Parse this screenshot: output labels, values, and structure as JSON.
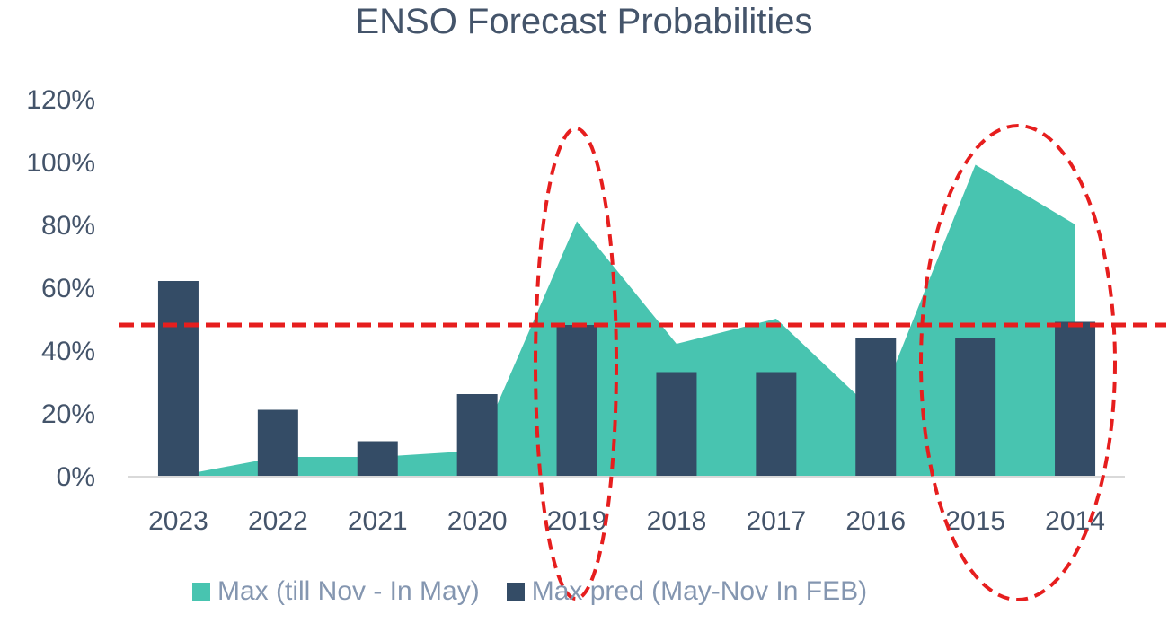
{
  "chart_data": {
    "type": "bar",
    "title": "ENSO Forecast Probabilities",
    "categories": [
      "2023",
      "2022",
      "2021",
      "2020",
      "2019",
      "2018",
      "2017",
      "2016",
      "2015",
      "2014"
    ],
    "series": [
      {
        "name": "Max (till Nov - In May)",
        "type": "area",
        "color": "#48c4b0",
        "values": [
          0,
          6,
          6,
          8,
          81,
          42,
          50,
          20,
          99,
          80
        ]
      },
      {
        "name": "Max pred (May-Nov In FEB)",
        "type": "bar",
        "color": "#344c66",
        "values": [
          62,
          21,
          11,
          26,
          48,
          33,
          33,
          44,
          44,
          49
        ]
      }
    ],
    "yticks": [
      "0%",
      "20%",
      "40%",
      "60%",
      "80%",
      "100%",
      "120%"
    ],
    "ylim": [
      0,
      120
    ],
    "annotations": {
      "reference_line_value": 48,
      "reference_line_color": "#e61e1e",
      "highlighted_categories": [
        "2019",
        "2015",
        "2014"
      ],
      "ellipse_color": "#e61e1e"
    },
    "grid": false,
    "legend_position": "bottom"
  }
}
